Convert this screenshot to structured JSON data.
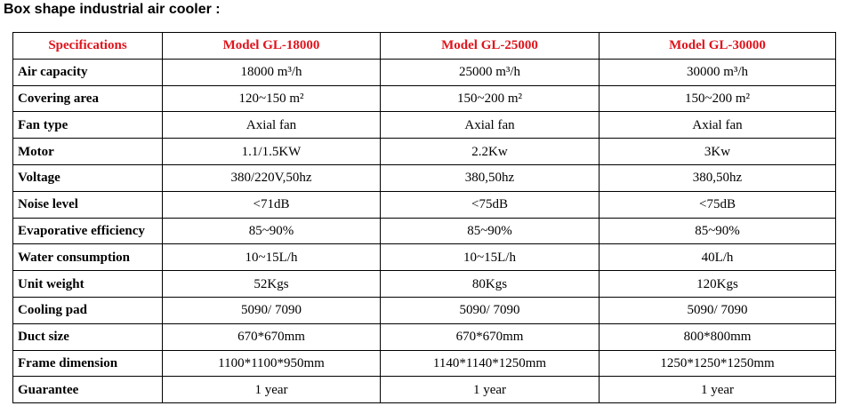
{
  "page": {
    "title": "Box shape industrial air cooler :"
  },
  "table": {
    "headers": [
      "Specifications",
      "Model GL-18000",
      "Model GL-25000",
      "Model GL-30000"
    ],
    "header_color": "#e0141c",
    "rows": [
      {
        "label": "Air capacity",
        "values": [
          "18000 m³/h",
          "25000 m³/h",
          "30000 m³/h"
        ]
      },
      {
        "label": "Covering area",
        "values": [
          "120~150 m²",
          "150~200 m²",
          "150~200 m²"
        ]
      },
      {
        "label": "Fan type",
        "values": [
          "Axial fan",
          "Axial fan",
          "Axial fan"
        ]
      },
      {
        "label": "Motor",
        "values": [
          "1.1/1.5KW",
          "2.2Kw",
          "3Kw"
        ]
      },
      {
        "label": "Voltage",
        "values": [
          "380/220V,50hz",
          "380,50hz",
          "380,50hz"
        ]
      },
      {
        "label": "Noise level",
        "values": [
          "<71dB",
          "<75dB",
          "<75dB"
        ]
      },
      {
        "label": "Evaporative efficiency",
        "values": [
          "85~90%",
          "85~90%",
          "85~90%"
        ]
      },
      {
        "label": "Water consumption",
        "values": [
          "10~15L/h",
          "10~15L/h",
          "40L/h"
        ]
      },
      {
        "label": "Unit weight",
        "values": [
          "52Kgs",
          "80Kgs",
          "120Kgs"
        ]
      },
      {
        "label": "Cooling pad",
        "values": [
          "5090/ 7090",
          "5090/ 7090",
          "5090/ 7090"
        ]
      },
      {
        "label": "Duct size",
        "values": [
          "670*670mm",
          "670*670mm",
          "800*800mm"
        ]
      },
      {
        "label": "Frame dimension",
        "values": [
          "1100*1100*950mm",
          "1140*1140*1250mm",
          "1250*1250*1250mm"
        ]
      },
      {
        "label": "Guarantee",
        "values": [
          "1 year",
          "1 year",
          "1 year"
        ]
      }
    ]
  }
}
